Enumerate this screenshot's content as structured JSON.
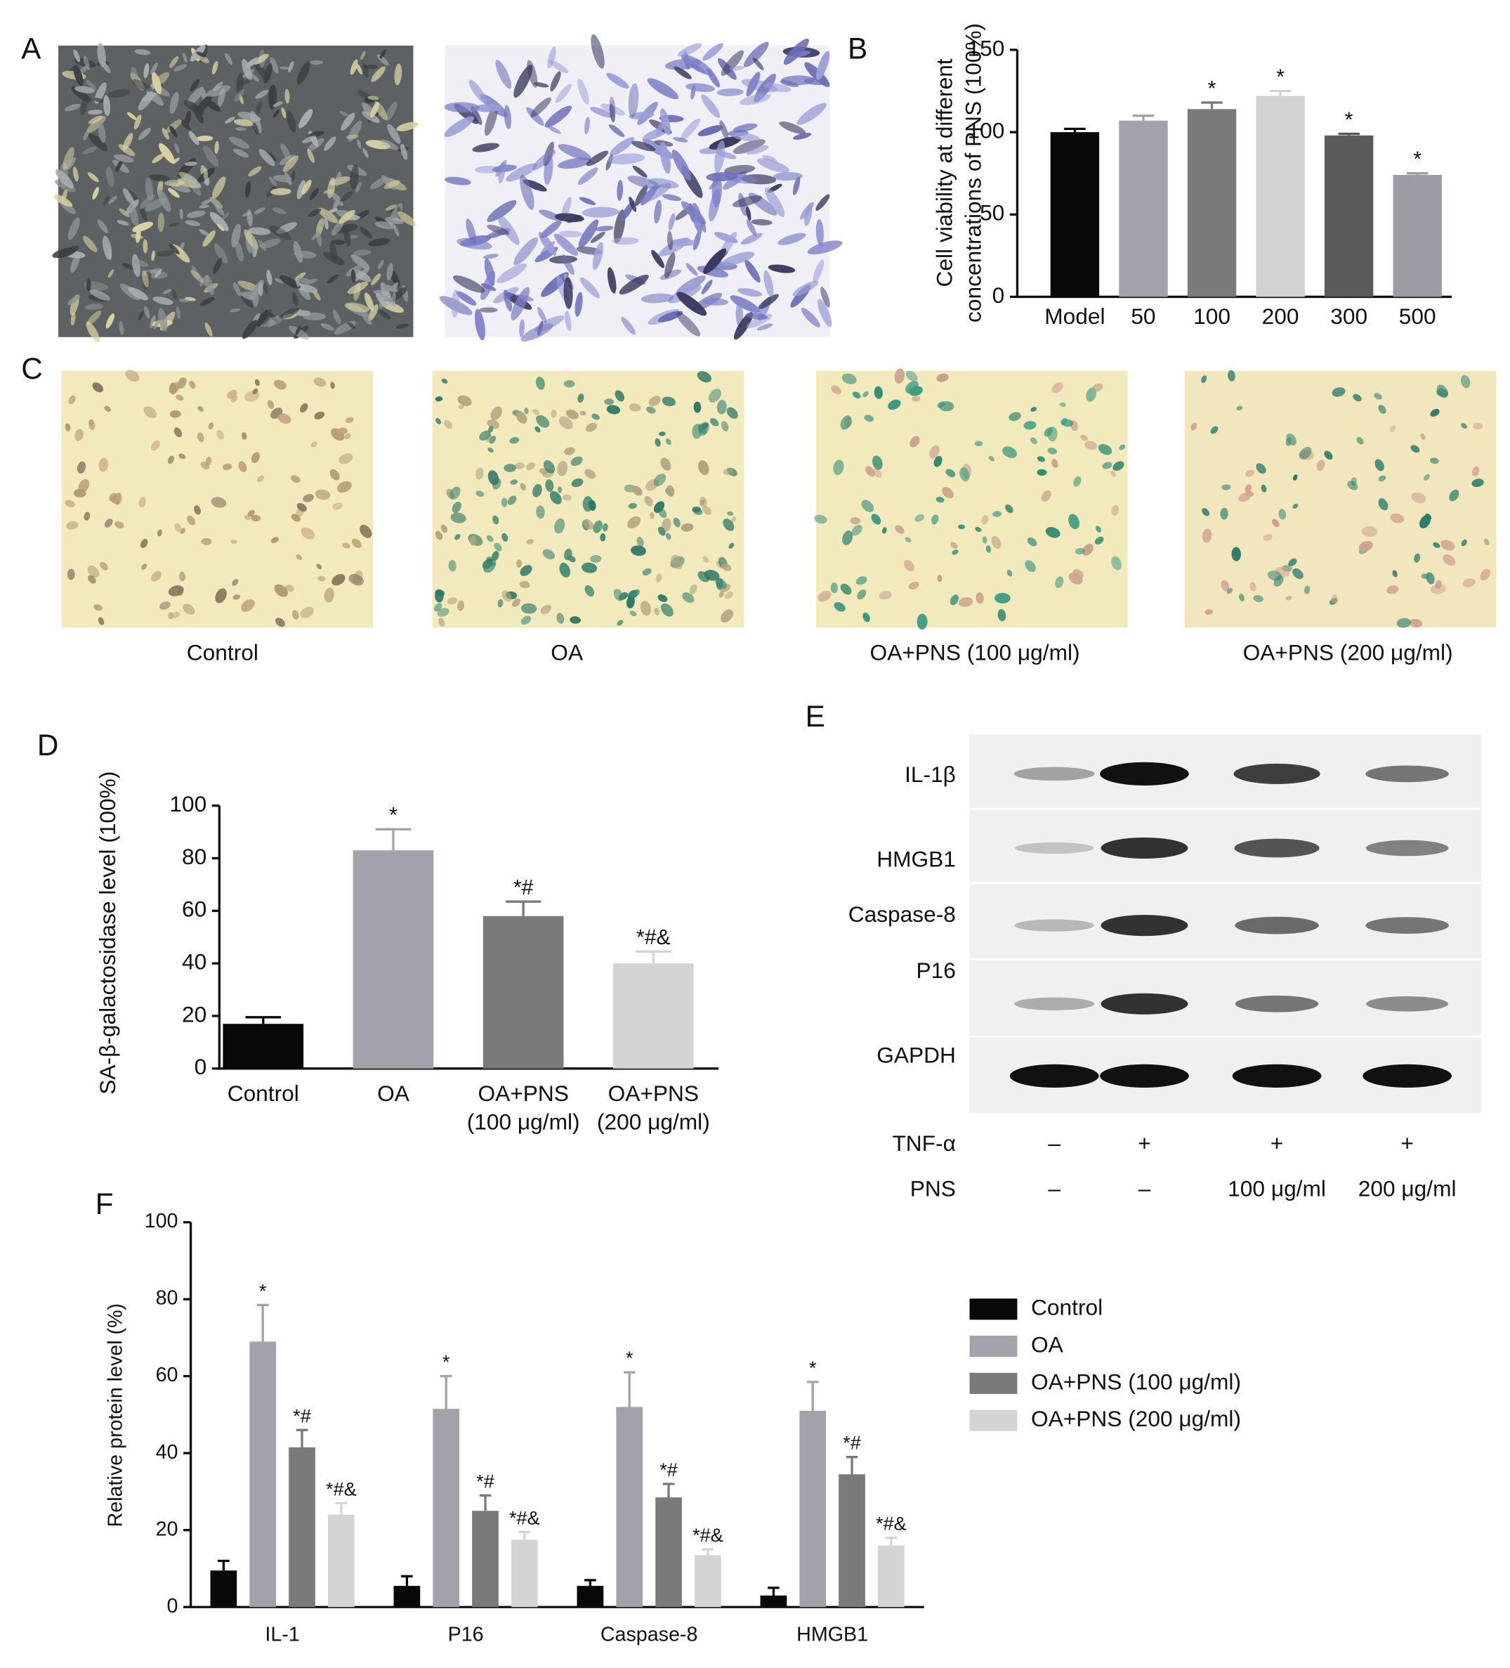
{
  "panels": {
    "labels": [
      "A",
      "B",
      "C",
      "D",
      "E",
      "F"
    ]
  },
  "images_c": {
    "captions": [
      "Control",
      "OA",
      "OA+PNS (100 μg/ml)",
      "OA+PNS (200 μg/ml)"
    ]
  },
  "blot": {
    "rows": [
      "IL-1β",
      "HMGB1",
      "Caspase-8",
      "P16",
      "GAPDH"
    ],
    "conditions": [
      {
        "name": "TNF-α",
        "values": [
          "–",
          "+",
          "+",
          "+"
        ]
      },
      {
        "name": "PNS",
        "values": [
          "–",
          "–",
          "100 μg/ml",
          "200 μg/ml"
        ]
      }
    ]
  },
  "chart_data": [
    {
      "type": "bar",
      "ylabel": [
        "Cell viability at different",
        "concentrations of PNS (100%)"
      ],
      "categories": [
        "Model",
        "50",
        "100",
        "200",
        "300",
        "500"
      ],
      "values": [
        100,
        107,
        114,
        122,
        98,
        74
      ],
      "errors": [
        2,
        3,
        4,
        3,
        1,
        1
      ],
      "annotations": [
        null,
        null,
        "*",
        "*",
        "*",
        "*"
      ],
      "colors": [
        "#080808",
        "#a2a2aa",
        "#7a7a7a",
        "#d2d2d2",
        "#5a5a5a",
        "#9c9ca4"
      ],
      "ylim": [
        0,
        150
      ],
      "yticks": [
        0,
        50,
        100,
        150
      ]
    },
    {
      "type": "bar",
      "ylabel": [
        "SA-β-galactosidase level (100%)"
      ],
      "categories": [
        [
          "Control"
        ],
        [
          "OA"
        ],
        [
          "OA+PNS",
          "(100 μg/ml)"
        ],
        [
          "OA+PNS",
          "(200 μg/ml)"
        ]
      ],
      "values": [
        17,
        83,
        58,
        40
      ],
      "errors": [
        2.5,
        8,
        5.5,
        4.5
      ],
      "annotations": [
        null,
        "*",
        "*#",
        "*#&"
      ],
      "colors": [
        "#080808",
        "#a2a2aa",
        "#7a7a7a",
        "#d4d4d4"
      ],
      "ylim": [
        0,
        100
      ],
      "yticks": [
        0,
        20,
        40,
        60,
        80,
        100
      ]
    },
    {
      "type": "grouped_bar",
      "ylabel": [
        "Relative protein level (%)"
      ],
      "categories": [
        "IL-1",
        "P16",
        "Caspase-8",
        "HMGB1"
      ],
      "series": [
        {
          "name": "Control",
          "color": "#080808",
          "values": [
            9.5,
            5.5,
            5.5,
            3
          ],
          "errors": [
            2.5,
            2.5,
            1.5,
            2
          ],
          "annotation": null
        },
        {
          "name": "OA",
          "color": "#a2a2aa",
          "values": [
            69,
            51.5,
            52,
            51
          ],
          "errors": [
            9.5,
            8.5,
            9,
            7.5
          ],
          "annotation": "*"
        },
        {
          "name": "OA+PNS (100 μg/ml)",
          "color": "#7a7a7a",
          "values": [
            41.5,
            25,
            28.5,
            34.5
          ],
          "errors": [
            4.5,
            4,
            3.5,
            4.5
          ],
          "annotation": "*#"
        },
        {
          "name": "OA+PNS (200 μg/ml)",
          "color": "#d4d4d4",
          "values": [
            24,
            17.5,
            13.5,
            16
          ],
          "errors": [
            3,
            2,
            1.5,
            2
          ],
          "annotation": "*#&"
        }
      ],
      "ylim": [
        0,
        100
      ],
      "yticks": [
        0,
        20,
        40,
        60,
        80,
        100
      ]
    }
  ]
}
